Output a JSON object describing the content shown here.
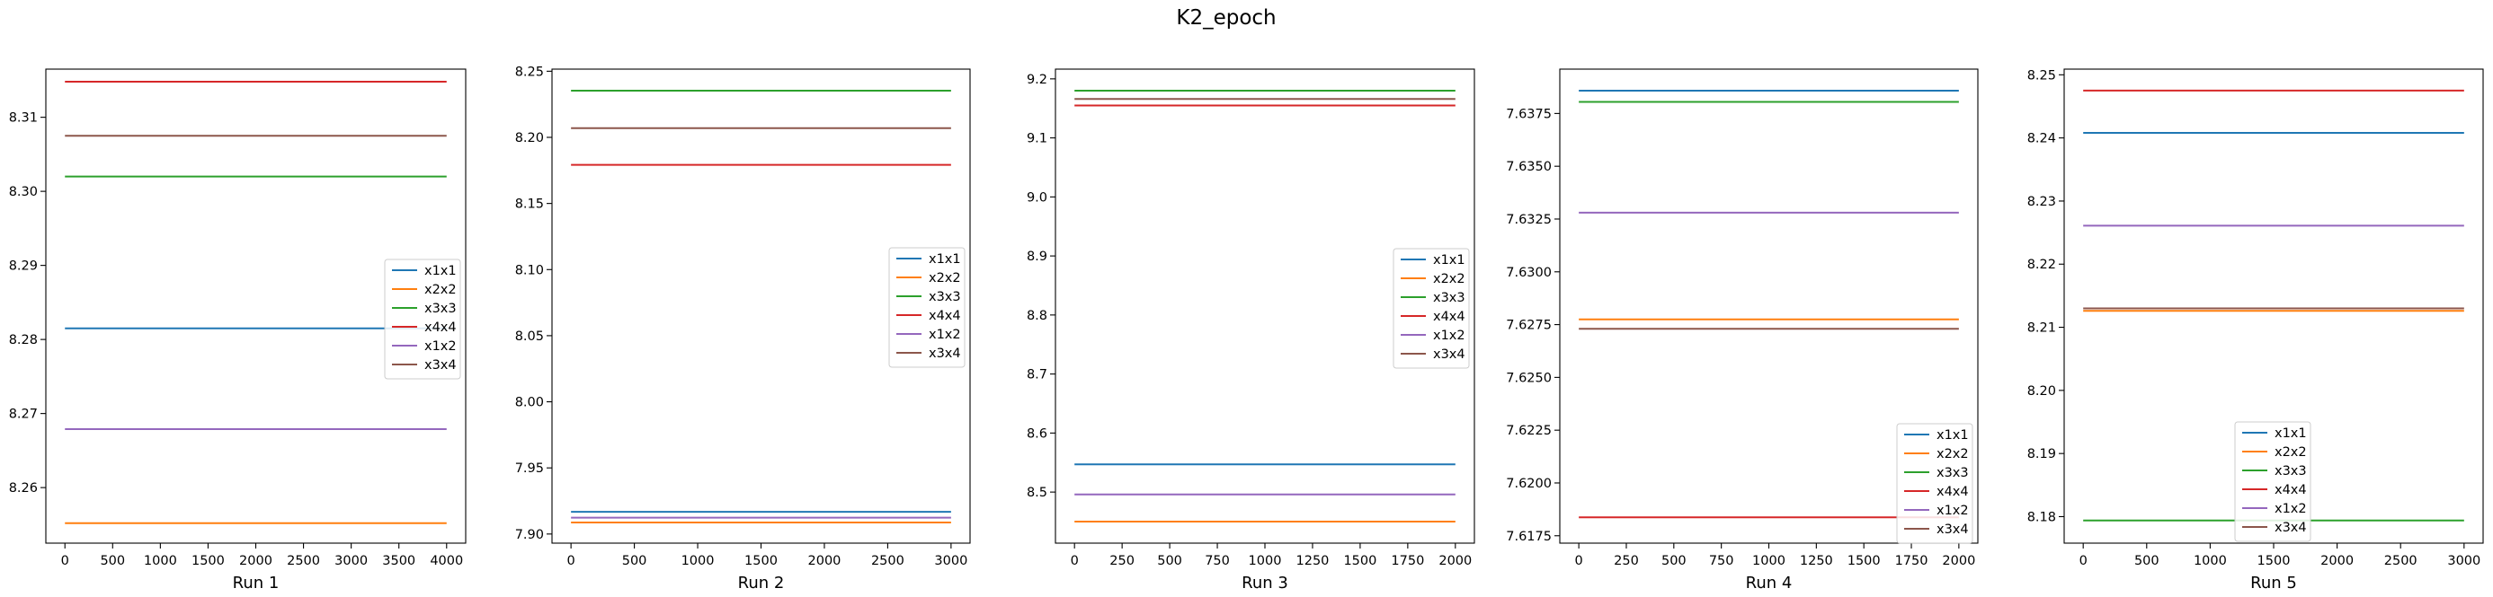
{
  "figure": {
    "suptitle": "K2_epoch"
  },
  "chart_data": [
    {
      "type": "line",
      "xlabel": "Run 1",
      "xlim": [
        -200,
        4200
      ],
      "ylim": [
        8.2525,
        8.3165
      ],
      "xticks": [
        0,
        500,
        1000,
        1500,
        2000,
        2500,
        3000,
        3500,
        4000
      ],
      "xtick_labels": [
        "0",
        "500",
        "1000",
        "1500",
        "2000",
        "2500",
        "3000",
        "3500",
        "4000"
      ],
      "yticks": [
        8.26,
        8.27,
        8.28,
        8.29,
        8.3,
        8.31
      ],
      "ytick_labels": [
        "8.26",
        "8.27",
        "8.28",
        "8.29",
        "8.30",
        "8.31"
      ],
      "legend_position": "center-right",
      "series": [
        {
          "name": "x1x1",
          "color": "#1f77b4",
          "x": [
            0,
            4000
          ],
          "y": [
            8.2815,
            8.2815
          ]
        },
        {
          "name": "x2x2",
          "color": "#ff7f0e",
          "x": [
            0,
            4000
          ],
          "y": [
            8.2552,
            8.2552
          ]
        },
        {
          "name": "x3x3",
          "color": "#2ca02c",
          "x": [
            0,
            4000
          ],
          "y": [
            8.302,
            8.302
          ]
        },
        {
          "name": "x4x4",
          "color": "#d62728",
          "x": [
            0,
            4000
          ],
          "y": [
            8.3148,
            8.3148
          ]
        },
        {
          "name": "x1x2",
          "color": "#9467bd",
          "x": [
            0,
            4000
          ],
          "y": [
            8.2679,
            8.2679
          ]
        },
        {
          "name": "x3x4",
          "color": "#8c564b",
          "x": [
            0,
            4000
          ],
          "y": [
            8.3075,
            8.3075
          ]
        }
      ]
    },
    {
      "type": "line",
      "xlabel": "Run 2",
      "xlim": [
        -150,
        3150
      ],
      "ylim": [
        7.8931,
        8.2516
      ],
      "xticks": [
        0,
        500,
        1000,
        1500,
        2000,
        2500,
        3000
      ],
      "xtick_labels": [
        "0",
        "500",
        "1000",
        "1500",
        "2000",
        "2500",
        "3000"
      ],
      "yticks": [
        7.9,
        7.95,
        8.0,
        8.05,
        8.1,
        8.15,
        8.2,
        8.25
      ],
      "ytick_labels": [
        "7.90",
        "7.95",
        "8.00",
        "8.05",
        "8.10",
        "8.15",
        "8.20",
        "8.25"
      ],
      "legend_position": "center-right",
      "series": [
        {
          "name": "x1x1",
          "color": "#1f77b4",
          "x": [
            0,
            3000
          ],
          "y": [
            7.9168,
            7.9168
          ]
        },
        {
          "name": "x2x2",
          "color": "#ff7f0e",
          "x": [
            0,
            3000
          ],
          "y": [
            7.9087,
            7.9087
          ]
        },
        {
          "name": "x3x3",
          "color": "#2ca02c",
          "x": [
            0,
            3000
          ],
          "y": [
            8.2353,
            8.2353
          ]
        },
        {
          "name": "x4x4",
          "color": "#d62728",
          "x": [
            0,
            3000
          ],
          "y": [
            8.1792,
            8.1792
          ]
        },
        {
          "name": "x1x2",
          "color": "#9467bd",
          "x": [
            0,
            3000
          ],
          "y": [
            7.9124,
            7.9124
          ]
        },
        {
          "name": "x3x4",
          "color": "#8c564b",
          "x": [
            0,
            3000
          ],
          "y": [
            8.207,
            8.207
          ]
        }
      ]
    },
    {
      "type": "line",
      "xlabel": "Run 3",
      "xlim": [
        -100,
        2100
      ],
      "ylim": [
        8.4135,
        9.2165
      ],
      "xticks": [
        0,
        250,
        500,
        750,
        1000,
        1250,
        1500,
        1750,
        2000
      ],
      "xtick_labels": [
        "0",
        "250",
        "500",
        "750",
        "1000",
        "1250",
        "1500",
        "1750",
        "2000"
      ],
      "yticks": [
        8.5,
        8.6,
        8.7,
        8.8,
        8.9,
        9.0,
        9.1,
        9.2
      ],
      "ytick_labels": [
        "8.5",
        "8.6",
        "8.7",
        "8.8",
        "8.9",
        "9.0",
        "9.1",
        "9.2"
      ],
      "legend_position": "center-right",
      "series": [
        {
          "name": "x1x1",
          "color": "#1f77b4",
          "x": [
            0,
            2000
          ],
          "y": [
            8.547,
            8.547
          ]
        },
        {
          "name": "x2x2",
          "color": "#ff7f0e",
          "x": [
            0,
            2000
          ],
          "y": [
            8.45,
            8.45
          ]
        },
        {
          "name": "x3x3",
          "color": "#2ca02c",
          "x": [
            0,
            2000
          ],
          "y": [
            9.18,
            9.18
          ]
        },
        {
          "name": "x4x4",
          "color": "#d62728",
          "x": [
            0,
            2000
          ],
          "y": [
            9.155,
            9.155
          ]
        },
        {
          "name": "x1x2",
          "color": "#9467bd",
          "x": [
            0,
            2000
          ],
          "y": [
            8.496,
            8.496
          ]
        },
        {
          "name": "x3x4",
          "color": "#8c564b",
          "x": [
            0,
            2000
          ],
          "y": [
            9.166,
            9.166
          ]
        }
      ]
    },
    {
      "type": "line",
      "xlabel": "Run 4",
      "xlim": [
        -100,
        2100
      ],
      "ylim": [
        7.61715,
        7.6396
      ],
      "xticks": [
        0,
        250,
        500,
        750,
        1000,
        1250,
        1500,
        1750,
        2000
      ],
      "xtick_labels": [
        "0",
        "250",
        "500",
        "750",
        "1000",
        "1250",
        "1500",
        "1750",
        "2000"
      ],
      "yticks": [
        7.6175,
        7.62,
        7.6225,
        7.625,
        7.6275,
        7.63,
        7.6325,
        7.635,
        7.6375
      ],
      "ytick_labels": [
        "7.6175",
        "7.6200",
        "7.6225",
        "7.6250",
        "7.6275",
        "7.6300",
        "7.6325",
        "7.6350",
        "7.6375"
      ],
      "legend_position": "lower-right",
      "series": [
        {
          "name": "x1x1",
          "color": "#1f77b4",
          "x": [
            0,
            2000
          ],
          "y": [
            7.63858,
            7.63858
          ]
        },
        {
          "name": "x2x2",
          "color": "#ff7f0e",
          "x": [
            0,
            2000
          ],
          "y": [
            7.62775,
            7.62775
          ]
        },
        {
          "name": "x3x3",
          "color": "#2ca02c",
          "x": [
            0,
            2000
          ],
          "y": [
            7.63805,
            7.63805
          ]
        },
        {
          "name": "x4x4",
          "color": "#d62728",
          "x": [
            0,
            2000
          ],
          "y": [
            7.61837,
            7.61837
          ]
        },
        {
          "name": "x1x2",
          "color": "#9467bd",
          "x": [
            0,
            2000
          ],
          "y": [
            7.6328,
            7.6328
          ]
        },
        {
          "name": "x3x4",
          "color": "#8c564b",
          "x": [
            0,
            2000
          ],
          "y": [
            7.6273,
            7.6273
          ]
        }
      ]
    },
    {
      "type": "line",
      "xlabel": "Run 5",
      "xlim": [
        -150,
        3150
      ],
      "ylim": [
        8.1758,
        8.2509
      ],
      "xticks": [
        0,
        500,
        1000,
        1500,
        2000,
        2500,
        3000
      ],
      "xtick_labels": [
        "0",
        "500",
        "1000",
        "1500",
        "2000",
        "2500",
        "3000"
      ],
      "yticks": [
        8.18,
        8.19,
        8.2,
        8.21,
        8.22,
        8.23,
        8.24,
        8.25
      ],
      "ytick_labels": [
        "8.18",
        "8.19",
        "8.20",
        "8.21",
        "8.22",
        "8.23",
        "8.24",
        "8.25"
      ],
      "legend_position": "lower-center",
      "series": [
        {
          "name": "x1x1",
          "color": "#1f77b4",
          "x": [
            0,
            3000
          ],
          "y": [
            8.2408,
            8.2408
          ]
        },
        {
          "name": "x2x2",
          "color": "#ff7f0e",
          "x": [
            0,
            3000
          ],
          "y": [
            8.2126,
            8.2126
          ]
        },
        {
          "name": "x3x3",
          "color": "#2ca02c",
          "x": [
            0,
            3000
          ],
          "y": [
            8.1794,
            8.1794
          ]
        },
        {
          "name": "x4x4",
          "color": "#d62728",
          "x": [
            0,
            3000
          ],
          "y": [
            8.2475,
            8.2475
          ]
        },
        {
          "name": "x1x2",
          "color": "#9467bd",
          "x": [
            0,
            3000
          ],
          "y": [
            8.2261,
            8.2261
          ]
        },
        {
          "name": "x3x4",
          "color": "#8c564b",
          "x": [
            0,
            3000
          ],
          "y": [
            8.213,
            8.213
          ]
        }
      ]
    }
  ]
}
